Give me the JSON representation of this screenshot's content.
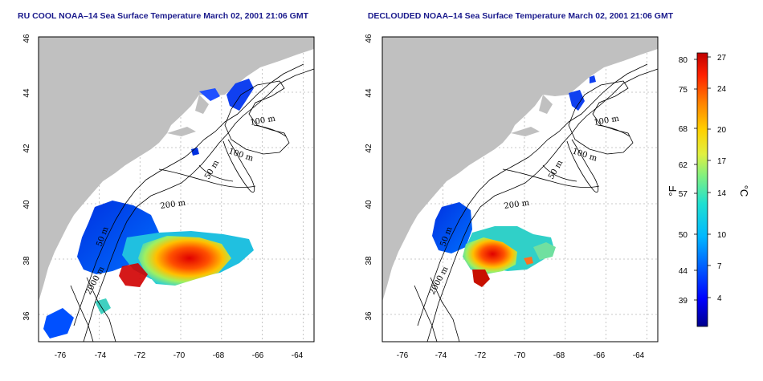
{
  "panels": [
    {
      "title": "RU COOL NOAA–14 Sea Surface Temperature March 02, 2001 21:06 GMT",
      "x_ticks": [
        "-76",
        "-74",
        "-72",
        "-70",
        "-68",
        "-66",
        "-64"
      ],
      "y_ticks": [
        "36",
        "38",
        "40",
        "42",
        "44",
        "46"
      ],
      "contour_labels": [
        "100 m",
        "100 m",
        "50 m",
        "200 m",
        "50 m",
        "2000 m"
      ]
    },
    {
      "title": "DECLOUDED NOAA–14 Sea Surface Temperature March 02, 2001 21:06 GMT",
      "x_ticks": [
        "-76",
        "-74",
        "-72",
        "-70",
        "-68",
        "-66",
        "-64"
      ],
      "y_ticks": [
        "36",
        "38",
        "40",
        "42",
        "44",
        "46"
      ],
      "contour_labels": [
        "100 m",
        "100 m",
        "50 m",
        "200 m",
        "50 m",
        "2000 m"
      ]
    }
  ],
  "colorbar": {
    "fahrenheit_ticks": [
      "80",
      "75",
      "68",
      "62",
      "57",
      "50",
      "44",
      "39"
    ],
    "celsius_ticks": [
      "27",
      "24",
      "20",
      "17",
      "14",
      "10",
      "7",
      "4"
    ],
    "fahrenheit_unit": "°F",
    "celsius_unit": "°C",
    "colors": [
      "#00008c",
      "#0000ff",
      "#0060ff",
      "#00b8ff",
      "#20e0d0",
      "#80f080",
      "#e0f040",
      "#ffd000",
      "#ff8000",
      "#ff2000",
      "#c00000"
    ]
  },
  "colors": {
    "land": "#c0c0c0",
    "ocean": "#ffffff",
    "title": "#1a1a8c"
  }
}
